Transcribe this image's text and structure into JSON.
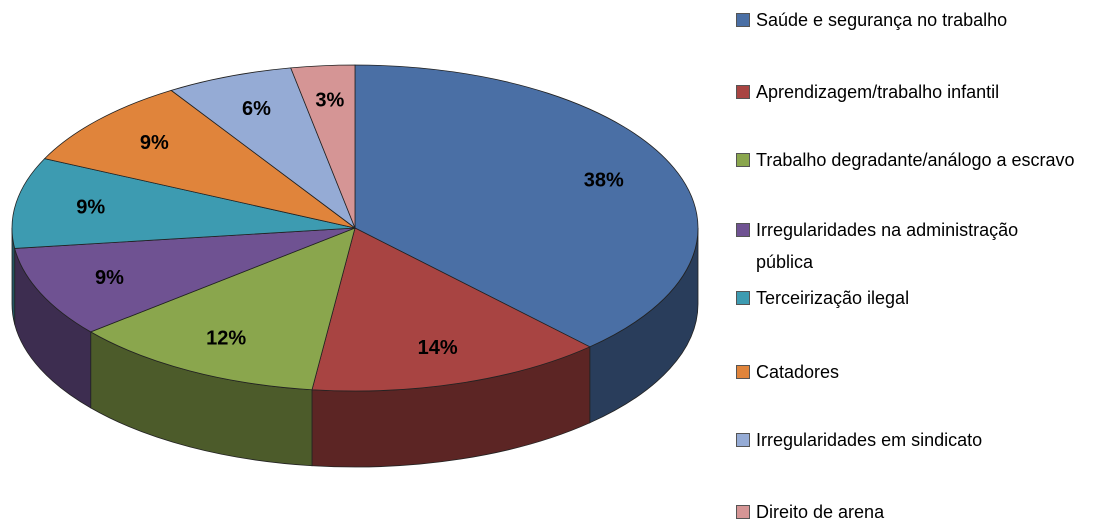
{
  "chart_data": {
    "type": "pie3d",
    "categories": [
      "Saúde e segurança no trabalho",
      "Aprendizagem/trabalho infantil",
      "Trabalho degradante/análogo a escravo",
      "Irregularidades na administração pública",
      "Terceirização ilegal",
      "Catadores",
      "Irregularidades em sindicato",
      "Direito de arena"
    ],
    "values": [
      38,
      14,
      12,
      9,
      9,
      9,
      6,
      3
    ],
    "value_labels": [
      "38%",
      "14%",
      "12%",
      "9%",
      "9%",
      "9%",
      "6%",
      "3%"
    ],
    "colors": [
      "#4a6fa5",
      "#a84442",
      "#8aa64d",
      "#6f5292",
      "#3d9bb1",
      "#e0843b",
      "#95abd5",
      "#d59595"
    ],
    "legend": "right"
  }
}
